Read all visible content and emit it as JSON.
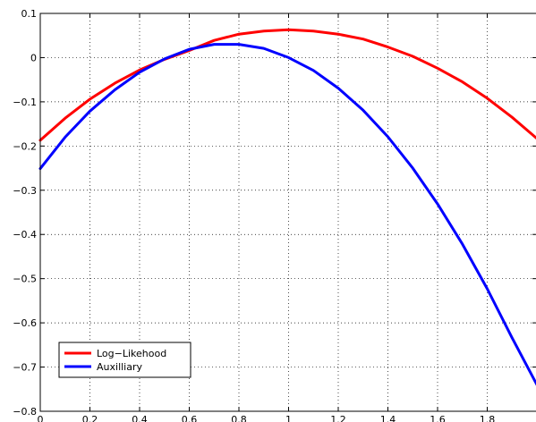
{
  "chart_data": {
    "type": "line",
    "title": "",
    "xlabel": "",
    "ylabel": "",
    "xlim": [
      0,
      2
    ],
    "ylim": [
      -0.8,
      0.1
    ],
    "grid": true,
    "legend_position": "bottom-left",
    "x_ticks": [
      0,
      0.2,
      0.4,
      0.6,
      0.8,
      1,
      1.2,
      1.4,
      1.6,
      1.8
    ],
    "x_tick_labels": [
      "0",
      "0.2",
      "0.4",
      "0.6",
      "0.8",
      "1",
      "1.2",
      "1.4",
      "1.6",
      "1.8"
    ],
    "y_ticks": [
      0.1,
      0,
      -0.1,
      -0.2,
      -0.3,
      -0.4,
      -0.5,
      -0.6,
      -0.7,
      -0.8
    ],
    "y_tick_labels": [
      "0.1",
      "0",
      "−0.1",
      "−0.2",
      "−0.3",
      "−0.4",
      "−0.5",
      "−0.6",
      "−0.7",
      "−0.8"
    ],
    "series": [
      {
        "name": "Log−Likehood",
        "color": "#ff0000",
        "x": [
          0,
          0.1,
          0.2,
          0.3,
          0.4,
          0.5,
          0.6,
          0.7,
          0.8,
          0.9,
          1.0,
          1.1,
          1.2,
          1.3,
          1.4,
          1.5,
          1.6,
          1.7,
          1.8,
          1.9,
          2.0
        ],
        "y": [
          -0.187,
          -0.137,
          -0.094,
          -0.058,
          -0.028,
          -0.004,
          0.016,
          0.039,
          0.053,
          0.06,
          0.063,
          0.06,
          0.053,
          0.042,
          0.024,
          0.003,
          -0.024,
          -0.055,
          -0.092,
          -0.135,
          -0.183
        ]
      },
      {
        "name": "Auxilliary",
        "color": "#0000ff",
        "x": [
          0,
          0.1,
          0.2,
          0.3,
          0.4,
          0.5,
          0.6,
          0.7,
          0.8,
          0.9,
          1.0,
          1.1,
          1.2,
          1.3,
          1.4,
          1.5,
          1.6,
          1.7,
          1.8,
          1.9,
          2.0
        ],
        "y": [
          -0.251,
          -0.18,
          -0.121,
          -0.073,
          -0.033,
          -0.003,
          0.019,
          0.03,
          0.03,
          0.021,
          0.0,
          -0.029,
          -0.069,
          -0.119,
          -0.179,
          -0.25,
          -0.331,
          -0.422,
          -0.523,
          -0.634,
          -0.74
        ]
      }
    ]
  }
}
